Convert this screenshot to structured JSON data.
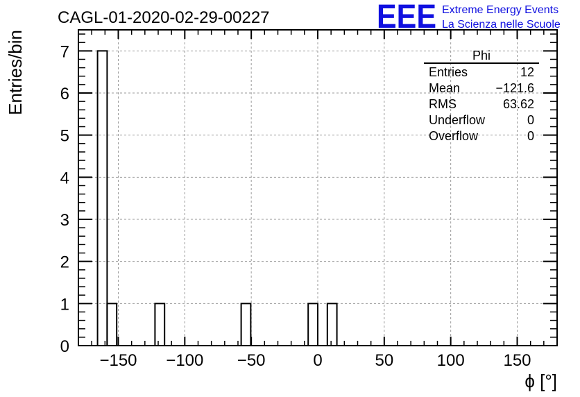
{
  "chart_data": {
    "type": "bar",
    "title": "CAGL-01-2020-02-29-00227",
    "xlabel": "ϕ [°]",
    "ylabel": "Entries/bin",
    "xlim": [
      -180,
      180
    ],
    "ylim": [
      0,
      7.5
    ],
    "bin_width": 7.2,
    "x_ticks": [
      -150,
      -100,
      -50,
      0,
      50,
      100,
      150
    ],
    "x_tick_labels": [
      "−150",
      "−100",
      "−50",
      "0",
      "50",
      "100",
      "150"
    ],
    "y_ticks": [
      0,
      1,
      2,
      3,
      4,
      5,
      6,
      7
    ],
    "y_tick_labels": [
      "0",
      "1",
      "2",
      "3",
      "4",
      "5",
      "6",
      "7"
    ],
    "grid": true,
    "bins": [
      {
        "x_low": -165.6,
        "x_high": -158.4,
        "count": 7
      },
      {
        "x_low": -158.4,
        "x_high": -151.2,
        "count": 1
      },
      {
        "x_low": -122.4,
        "x_high": -115.2,
        "count": 1
      },
      {
        "x_low": -57.6,
        "x_high": -50.4,
        "count": 1
      },
      {
        "x_low": -7.2,
        "x_high": 0.0,
        "count": 1
      },
      {
        "x_low": 7.2,
        "x_high": 14.4,
        "count": 1
      }
    ],
    "stats_box": {
      "title": "Phi",
      "rows": [
        {
          "label": "Entries",
          "value": "12"
        },
        {
          "label": "Mean",
          "value": "−121.6"
        },
        {
          "label": "RMS",
          "value": "63.62"
        },
        {
          "label": "Underflow",
          "value": "0"
        },
        {
          "label": "Overflow",
          "value": "0"
        }
      ]
    }
  },
  "logo": {
    "mark": "EEE",
    "line1": "Extreme Energy Events",
    "line2": "La Scienza nelle Scuole",
    "color": "#1010e0"
  }
}
